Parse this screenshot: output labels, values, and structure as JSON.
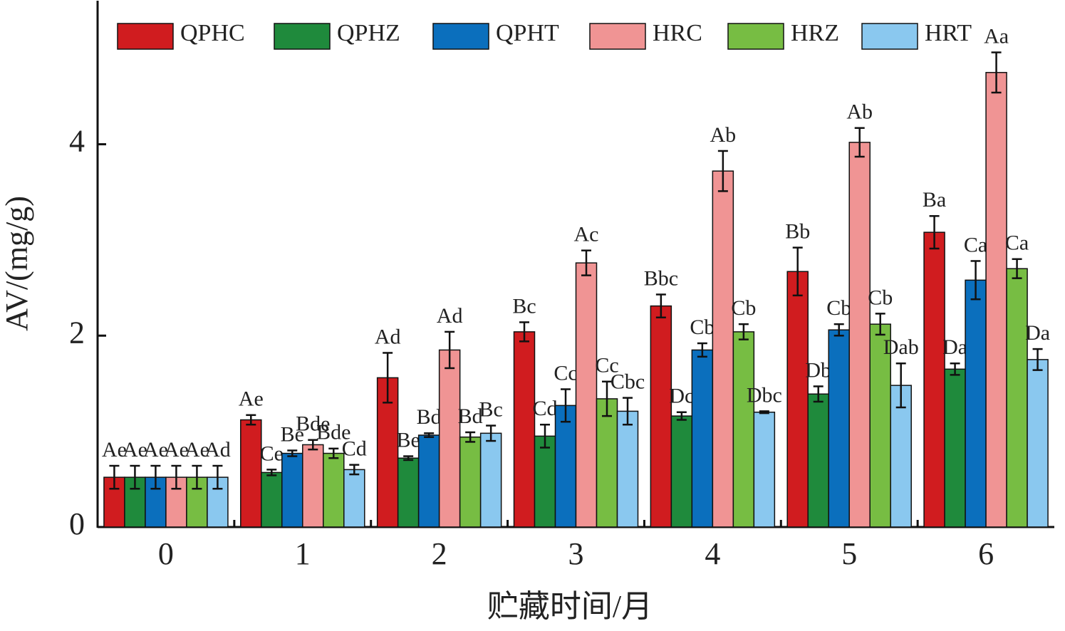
{
  "chart_data": {
    "type": "bar",
    "x_label": "贮藏时间/月",
    "y_label": "AV/(mg/g)",
    "categories": [
      "0",
      "1",
      "2",
      "3",
      "4",
      "5",
      "6"
    ],
    "ylim": [
      0,
      5.5
    ],
    "yticks": [
      0,
      2,
      4
    ],
    "series": [
      {
        "name": "QPHC",
        "color": "#d01c1f",
        "values": [
          0.52,
          1.12,
          1.56,
          2.04,
          2.31,
          2.67,
          3.08
        ],
        "errors": [
          0.12,
          0.05,
          0.26,
          0.1,
          0.12,
          0.25,
          0.17
        ],
        "letters": [
          "Ae",
          "Ae",
          "Ad",
          "Bc",
          "Bbc",
          "Bb",
          "Ba"
        ]
      },
      {
        "name": "QPHZ",
        "color": "#1f8a3c",
        "values": [
          0.52,
          0.57,
          0.72,
          0.95,
          1.16,
          1.39,
          1.65
        ],
        "errors": [
          0.12,
          0.03,
          0.02,
          0.12,
          0.04,
          0.08,
          0.06
        ],
        "letters": [
          "Ae",
          "Ce",
          "Be",
          "Cd",
          "Dc",
          "Db",
          "Da"
        ]
      },
      {
        "name": "QPHT",
        "color": "#0b6fbd",
        "values": [
          0.52,
          0.77,
          0.96,
          1.27,
          1.85,
          2.06,
          2.58
        ],
        "errors": [
          0.12,
          0.03,
          0.02,
          0.17,
          0.07,
          0.06,
          0.2
        ],
        "letters": [
          "Ae",
          "Be",
          "Bd",
          "Cc",
          "Cb",
          "Cb",
          "Ca"
        ]
      },
      {
        "name": "HRC",
        "color": "#f09494",
        "values": [
          0.52,
          0.86,
          1.85,
          2.76,
          3.72,
          4.02,
          4.75
        ],
        "errors": [
          0.12,
          0.05,
          0.19,
          0.13,
          0.21,
          0.15,
          0.21
        ],
        "letters": [
          "Ae",
          "Bde",
          "Ad",
          "Ac",
          "Ab",
          "Ab",
          "Aa"
        ]
      },
      {
        "name": "HRZ",
        "color": "#77bd43",
        "values": [
          0.52,
          0.77,
          0.94,
          1.34,
          2.04,
          2.12,
          2.7
        ],
        "errors": [
          0.12,
          0.05,
          0.05,
          0.18,
          0.08,
          0.11,
          0.1
        ],
        "letters": [
          "Ae",
          "Bde",
          "Bd",
          "Cc",
          "Cb",
          "Cb",
          "Ca"
        ]
      },
      {
        "name": "HRT",
        "color": "#8ac8ef",
        "values": [
          0.52,
          0.6,
          0.98,
          1.21,
          1.2,
          1.48,
          1.75
        ],
        "errors": [
          0.12,
          0.05,
          0.08,
          0.14,
          0.01,
          0.23,
          0.11
        ],
        "letters": [
          "Ad",
          "Cd",
          "Bc",
          "Cbc",
          "Dbc",
          "Dab",
          "Da"
        ]
      }
    ]
  }
}
